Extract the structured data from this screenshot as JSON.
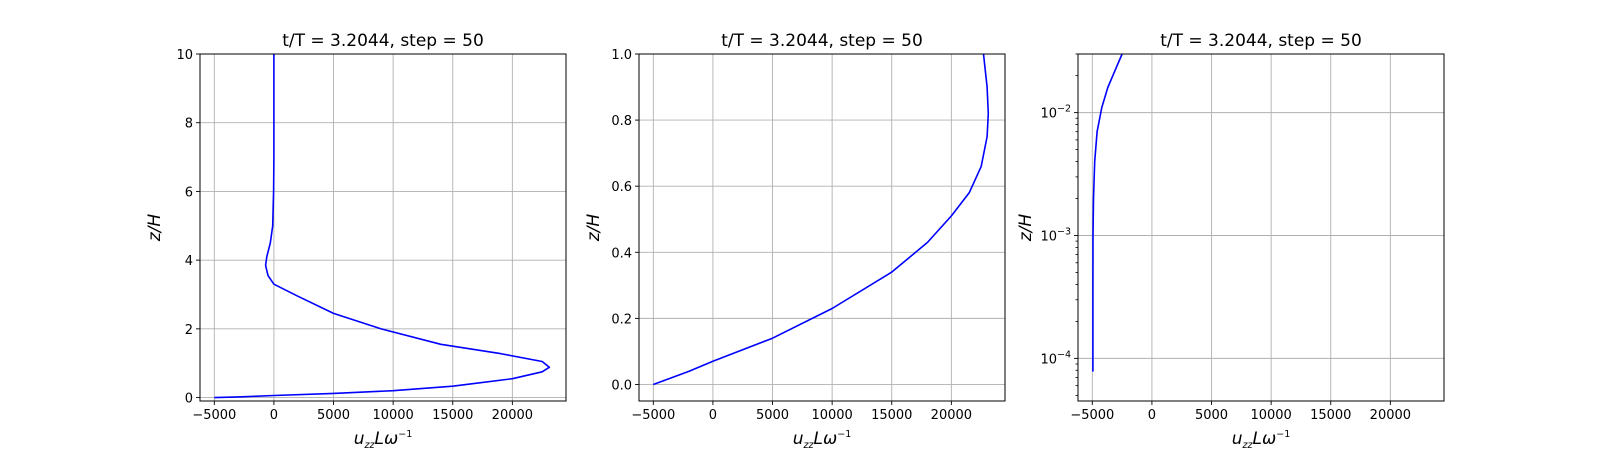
{
  "colors": {
    "line": "#0000ff",
    "grid": "#b0b0b0",
    "frame": "#000000"
  },
  "chart_data": [
    {
      "type": "line",
      "title": "t/T = 3.2044, step = 50",
      "xlabel": "u_zz L ω^-1",
      "xlabel_parts": {
        "base": "u",
        "sub": "zz",
        "mid": "Lω",
        "sup": "−1"
      },
      "ylabel": "z/H",
      "xlim": [
        -6200,
        24500
      ],
      "ylim": [
        -0.1,
        10
      ],
      "yscale": "linear",
      "grid": true,
      "xticks": [
        -5000,
        0,
        5000,
        10000,
        15000,
        20000
      ],
      "xtick_labels": [
        "−5000",
        "0",
        "5000",
        "10000",
        "15000",
        "20000"
      ],
      "yticks": [
        0,
        2,
        4,
        6,
        8,
        10
      ],
      "ytick_labels": [
        "0",
        "2",
        "4",
        "6",
        "8",
        "10"
      ],
      "series": [
        {
          "color": "#0000ff",
          "points": [
            [
              -5000,
              0
            ],
            [
              -3000,
              0.02
            ],
            [
              0,
              0.06
            ],
            [
              5000,
              0.12
            ],
            [
              10000,
              0.2
            ],
            [
              15000,
              0.33
            ],
            [
              20000,
              0.55
            ],
            [
              22500,
              0.75
            ],
            [
              23100,
              0.88
            ],
            [
              22500,
              1.05
            ],
            [
              19000,
              1.28
            ],
            [
              14000,
              1.55
            ],
            [
              9000,
              2.0
            ],
            [
              5000,
              2.45
            ],
            [
              2000,
              2.95
            ],
            [
              0,
              3.3
            ],
            [
              -500,
              3.55
            ],
            [
              -700,
              3.85
            ],
            [
              -600,
              4.1
            ],
            [
              -300,
              4.5
            ],
            [
              -100,
              5.0
            ],
            [
              -30,
              6.0
            ],
            [
              0,
              7.0
            ],
            [
              0,
              8.5
            ],
            [
              0,
              10
            ]
          ]
        }
      ]
    },
    {
      "type": "line",
      "title": "t/T = 3.2044, step = 50",
      "xlabel": "u_zz L ω^-1",
      "xlabel_parts": {
        "base": "u",
        "sub": "zz",
        "mid": "Lω",
        "sup": "−1"
      },
      "ylabel": "z/H",
      "xlim": [
        -6200,
        24500
      ],
      "ylim": [
        -0.05,
        1.0
      ],
      "yscale": "linear",
      "grid": true,
      "xticks": [
        -5000,
        0,
        5000,
        10000,
        15000,
        20000
      ],
      "xtick_labels": [
        "−5000",
        "0",
        "5000",
        "10000",
        "15000",
        "20000"
      ],
      "yticks": [
        0,
        0.2,
        0.4,
        0.6,
        0.8,
        1.0
      ],
      "ytick_labels": [
        "0.0",
        "0.2",
        "0.4",
        "0.6",
        "0.8",
        "1.0"
      ],
      "series": [
        {
          "color": "#0000ff",
          "points": [
            [
              -5000,
              0
            ],
            [
              -2000,
              0.04
            ],
            [
              0,
              0.07
            ],
            [
              5000,
              0.14
            ],
            [
              10000,
              0.23
            ],
            [
              15000,
              0.34
            ],
            [
              18000,
              0.43
            ],
            [
              20000,
              0.51
            ],
            [
              21500,
              0.58
            ],
            [
              22500,
              0.66
            ],
            [
              23000,
              0.75
            ],
            [
              23100,
              0.82
            ],
            [
              23000,
              0.9
            ],
            [
              22700,
              1.0
            ]
          ]
        }
      ]
    },
    {
      "type": "line",
      "title": "t/T = 3.2044, step = 50",
      "xlabel": "u_zz L ω^-1",
      "xlabel_parts": {
        "base": "u",
        "sub": "zz",
        "mid": "Lω",
        "sup": "−1"
      },
      "ylabel": "z/H",
      "xlim": [
        -6200,
        24500
      ],
      "ylim": [
        4.5e-05,
        0.03
      ],
      "yscale": "log",
      "grid": true,
      "xticks": [
        -5000,
        0,
        5000,
        10000,
        15000,
        20000
      ],
      "xtick_labels": [
        "−5000",
        "0",
        "5000",
        "10000",
        "15000",
        "20000"
      ],
      "yticks": [
        0.0001,
        0.001,
        0.01
      ],
      "ytick_labels": [
        {
          "base": "10",
          "exp": "−4"
        },
        {
          "base": "10",
          "exp": "−3"
        },
        {
          "base": "10",
          "exp": "−2"
        }
      ],
      "series": [
        {
          "color": "#0000ff",
          "points": [
            [
              -4950,
              7.8e-05
            ],
            [
              -4950,
              0.0003
            ],
            [
              -4940,
              0.001
            ],
            [
              -4900,
              0.002
            ],
            [
              -4800,
              0.004
            ],
            [
              -4600,
              0.007
            ],
            [
              -4200,
              0.011
            ],
            [
              -3700,
              0.016
            ],
            [
              -3100,
              0.022
            ],
            [
              -2500,
              0.03
            ]
          ]
        }
      ]
    }
  ]
}
